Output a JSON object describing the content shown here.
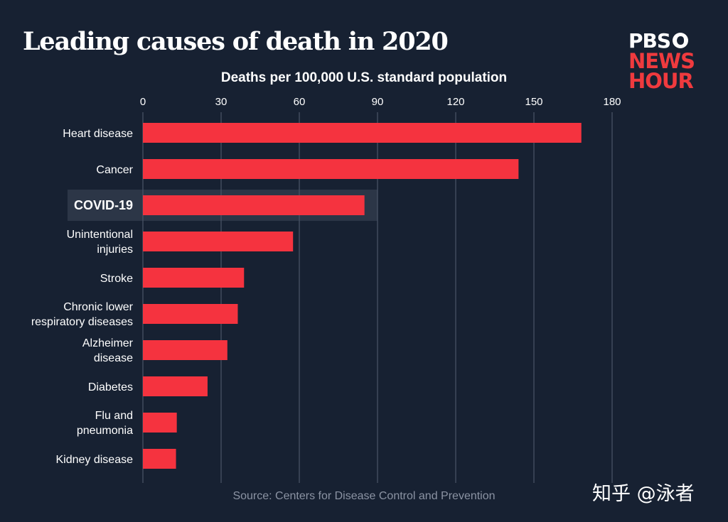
{
  "chart_data": {
    "type": "bar",
    "orientation": "horizontal",
    "title": "Leading causes of death in 2020",
    "xlabel": "Deaths per 100,000 U.S. standard population",
    "ylabel": "",
    "xlim": [
      0,
      180
    ],
    "x_ticks": [
      0,
      30,
      60,
      90,
      120,
      150,
      180
    ],
    "grid": true,
    "highlight": "COVID-19",
    "categories": [
      [
        "Heart disease"
      ],
      [
        "Cancer"
      ],
      [
        "COVID-19"
      ],
      [
        "Unintentional",
        "injuries"
      ],
      [
        "Stroke"
      ],
      [
        "Chronic lower",
        "respiratory diseases"
      ],
      [
        "Alzheimer",
        "disease"
      ],
      [
        "Diabetes"
      ],
      [
        "Flu and",
        "pneumonia"
      ],
      [
        "Kidney disease"
      ]
    ],
    "values": [
      168.2,
      144.1,
      85.0,
      57.6,
      38.8,
      36.4,
      32.4,
      24.8,
      13.0,
      12.7
    ],
    "source": "Source: Centers for Disease Control and Prevention",
    "colors": {
      "bar": "#f5333f",
      "grid": "#4a5568",
      "highlight_bg": "#2c3647",
      "background": "#172132"
    }
  },
  "logo": {
    "line1": "PBS",
    "line2": "NEWS",
    "line3": "HOUR"
  },
  "watermark": "知乎 @泳者"
}
